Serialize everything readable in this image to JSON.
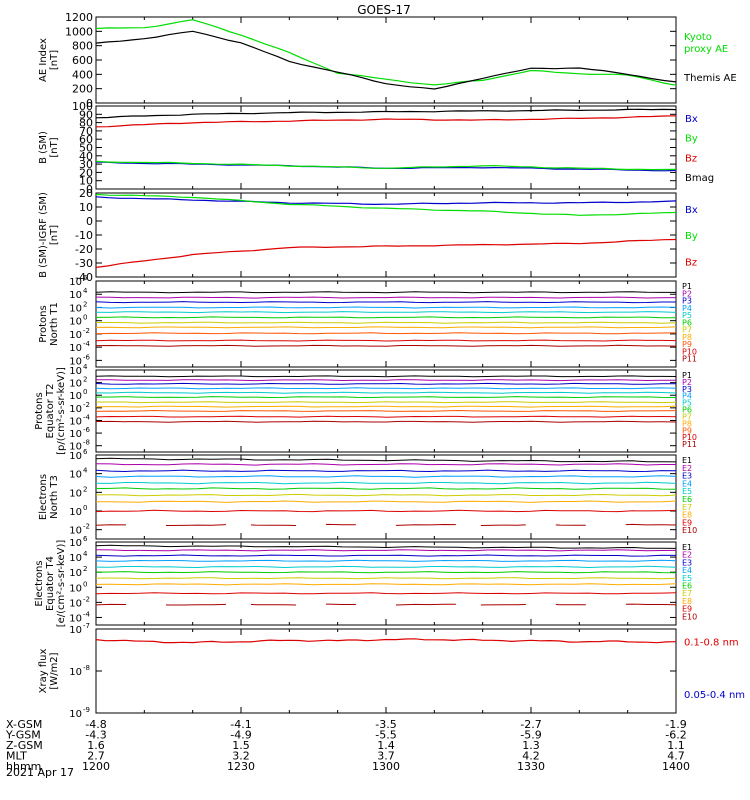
{
  "title": "GOES-17",
  "date_label": "2021 Apr 17",
  "chart_data": [
    {
      "type": "line",
      "panel": "ae",
      "ylabel": [
        "AE Index",
        "[nT]"
      ],
      "ylim": [
        0,
        1200
      ],
      "yticks": [
        "0",
        "200",
        "400",
        "600",
        "800",
        "1000",
        "1200"
      ],
      "yscale": "linear",
      "x": [
        0,
        10,
        20,
        30,
        40,
        50,
        60,
        70,
        80,
        90,
        100,
        110,
        120
      ],
      "series": [
        {
          "name": "Kyoto proxy AE",
          "legend": [
            "Kyoto",
            "proxy AE"
          ],
          "color": "#00dd00",
          "values": [
            1040,
            1050,
            1160,
            950,
            700,
            420,
            330,
            250,
            320,
            450,
            410,
            390,
            250
          ]
        },
        {
          "name": "Themis AE",
          "legend": [
            "Themis AE"
          ],
          "color": "#000000",
          "values": [
            830,
            900,
            1000,
            840,
            580,
            430,
            270,
            190,
            350,
            480,
            490,
            400,
            290
          ]
        }
      ]
    },
    {
      "type": "line",
      "panel": "b",
      "ylabel": [
        "B (SM)",
        "[nT]"
      ],
      "ylim": [
        0,
        100
      ],
      "yticks": [
        "0",
        "10",
        "20",
        "30",
        "40",
        "50",
        "60",
        "70",
        "80",
        "90",
        "100"
      ],
      "yscale": "linear",
      "x": [
        0,
        20,
        40,
        60,
        80,
        100,
        120
      ],
      "series": [
        {
          "name": "Bx",
          "color": "#0000cc",
          "values": [
            32,
            30,
            28,
            25,
            26,
            24,
            22
          ]
        },
        {
          "name": "By",
          "color": "#00dd00",
          "values": [
            33,
            31,
            28,
            25,
            28,
            25,
            23
          ]
        },
        {
          "name": "Bz",
          "color": "#dd0000",
          "values": [
            75,
            80,
            82,
            84,
            83,
            85,
            88
          ]
        },
        {
          "name": "Bmag",
          "color": "#000000",
          "values": [
            86,
            90,
            92,
            93,
            94,
            95,
            96
          ]
        }
      ]
    },
    {
      "type": "line",
      "panel": "dbigrf",
      "ylabel": [
        "B (SM)-IGRF (SM)",
        "[nT]"
      ],
      "ylim": [
        -40,
        20
      ],
      "yticks": [
        "-40",
        "-30",
        "-20",
        "-10",
        "0",
        "10",
        "20"
      ],
      "yscale": "linear",
      "x": [
        0,
        20,
        40,
        60,
        80,
        100,
        120
      ],
      "series": [
        {
          "name": "Bx",
          "color": "#0000cc",
          "values": [
            17,
            15,
            13,
            12,
            13,
            13,
            14
          ]
        },
        {
          "name": "By",
          "color": "#00dd00",
          "values": [
            19,
            17,
            12,
            9,
            7,
            4,
            6
          ]
        },
        {
          "name": "Bz",
          "color": "#dd0000",
          "values": [
            -33,
            -24,
            -19,
            -18,
            -17,
            -16,
            -13
          ]
        }
      ]
    },
    {
      "type": "line",
      "panel": "protons_t1",
      "ylabel": [
        "Protons",
        "North T1"
      ],
      "yscale": "log",
      "ylim_exp": [
        -7,
        6
      ],
      "yticks_exp": [
        -6,
        -4,
        -2,
        0,
        2,
        4,
        6
      ],
      "legend_labels": [
        "P1",
        "P2",
        "P3",
        "P4",
        "P5",
        "P6",
        "P7",
        "P8",
        "P9",
        "P10",
        "P11"
      ],
      "series_log10": [
        4.3,
        3.5,
        2.8,
        2.0,
        1.3,
        0.5,
        -0.3,
        -1.0,
        -1.9,
        -3.0,
        -3.8
      ]
    },
    {
      "type": "line",
      "panel": "protons_t2",
      "ylabel": [
        "Protons",
        "Equator T2",
        "[p/(cm²-s-sr-keV)]"
      ],
      "yscale": "log",
      "ylim_exp": [
        -9,
        4
      ],
      "yticks_exp": [
        -8,
        -6,
        -4,
        -2,
        0,
        2,
        4
      ],
      "legend_labels": [
        "P1",
        "P2",
        "P3",
        "P4",
        "P5",
        "P6",
        "P7",
        "P8",
        "P9",
        "P10",
        "P11"
      ],
      "series_log10": [
        3.0,
        2.4,
        1.8,
        1.1,
        0.4,
        -0.3,
        -1.1,
        -1.8,
        -2.5,
        -3.4,
        -4.2
      ]
    },
    {
      "type": "line",
      "panel": "electrons_t3",
      "ylabel": [
        "Electrons",
        "North T3"
      ],
      "yscale": "log",
      "ylim_exp": [
        -3,
        6
      ],
      "yticks_exp": [
        -2,
        0,
        2,
        4,
        6
      ],
      "legend_labels": [
        "E1",
        "E2",
        "E3",
        "E4",
        "E5",
        "E6",
        "E7",
        "E8",
        "E9",
        "E10"
      ],
      "series_log10": [
        5.6,
        5.0,
        4.3,
        3.7,
        3.0,
        2.4,
        1.7,
        1.0,
        0.0,
        -1.5
      ]
    },
    {
      "type": "line",
      "panel": "electrons_t4",
      "ylabel": [
        "Electrons",
        "Equator T4",
        "[e/(cm²-s-sr-keV)]"
      ],
      "yscale": "log",
      "ylim_exp": [
        -5,
        6
      ],
      "yticks_exp": [
        -4,
        -2,
        0,
        2,
        4,
        6
      ],
      "legend_labels": [
        "E1",
        "E2",
        "E3",
        "E4",
        "E5",
        "E6",
        "E7",
        "E8",
        "E9",
        "E10"
      ],
      "series_log10": [
        5.5,
        4.9,
        4.2,
        3.5,
        2.7,
        2.0,
        1.2,
        0.4,
        -0.8,
        -2.3
      ]
    },
    {
      "type": "line",
      "panel": "xray",
      "ylabel": [
        "Xray flux",
        "[W/m2]"
      ],
      "yscale": "log",
      "ylim_exp": [
        -9,
        -7
      ],
      "yticks_exp": [
        -9,
        -8,
        -7
      ],
      "series": [
        {
          "name": "0.1-0.8 nm",
          "color": "#dd0000",
          "log10": [
            -7.25,
            -7.3,
            -7.32,
            -7.3,
            -7.27,
            -7.28,
            -7.25,
            -7.25,
            -7.27,
            -7.28,
            -7.3,
            -7.3,
            -7.32
          ]
        },
        {
          "name": "0.05-0.4 nm",
          "color": "#0000cc",
          "log10": null
        }
      ]
    }
  ],
  "footer": {
    "rows": [
      {
        "label": "X-GSM",
        "values": [
          "-4.8",
          "-4.1",
          "-3.5",
          "-2.7",
          "-1.9"
        ]
      },
      {
        "label": "Y-GSM",
        "values": [
          "-4.3",
          "-4.9",
          "-5.5",
          "-5.9",
          "-6.2"
        ]
      },
      {
        "label": "Z-GSM",
        "values": [
          "1.6",
          "1.5",
          "1.4",
          "1.3",
          "1.1"
        ]
      },
      {
        "label": "MLT",
        "values": [
          "2.7",
          "3.2",
          "3.7",
          "4.2",
          "4.7"
        ]
      },
      {
        "label": "hhmm",
        "values": [
          "1200",
          "1230",
          "1300",
          "1330",
          "1400"
        ]
      }
    ]
  }
}
